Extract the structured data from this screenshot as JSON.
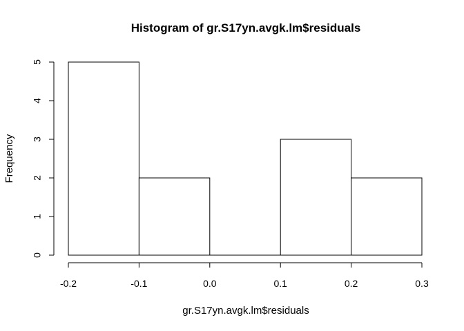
{
  "chart_data": {
    "type": "bar",
    "title": "Histogram of gr.S17yn.avgk.lm$residuals",
    "xlabel": "gr.S17yn.avgk.lm$residuals",
    "ylabel": "Frequency",
    "bins": [
      {
        "from": -0.2,
        "to": -0.1,
        "count": 5
      },
      {
        "from": -0.1,
        "to": 0.0,
        "count": 2
      },
      {
        "from": 0.0,
        "to": 0.1,
        "count": 0
      },
      {
        "from": 0.1,
        "to": 0.2,
        "count": 3
      },
      {
        "from": 0.2,
        "to": 0.3,
        "count": 2
      }
    ],
    "xlim": [
      -0.2,
      0.3
    ],
    "ylim": [
      0,
      5
    ],
    "x_ticks": [
      "-0.2",
      "-0.1",
      "0.0",
      "0.1",
      "0.2",
      "0.3"
    ],
    "y_ticks": [
      "0",
      "1",
      "2",
      "3",
      "4",
      "5"
    ],
    "grid": false,
    "colors": {
      "bar_fill": "#ffffff",
      "bar_stroke": "#000000"
    }
  }
}
